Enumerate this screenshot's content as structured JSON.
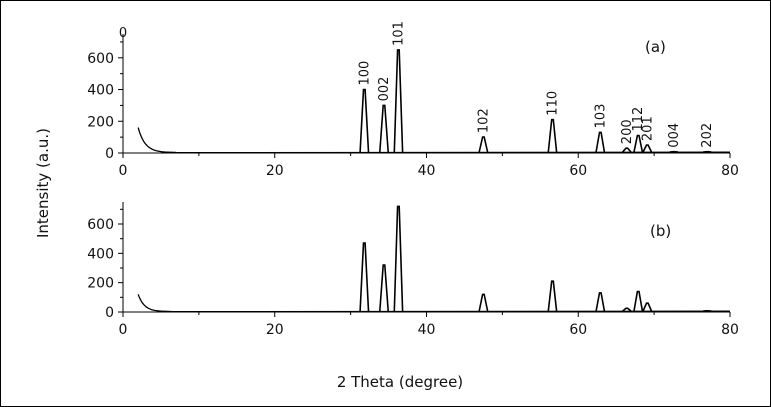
{
  "figure": {
    "ylabel": "Intensity (a.u.)",
    "xlabel": "2 Theta (degree)",
    "stray_tick_label": "0"
  },
  "chart_data": [
    {
      "type": "line",
      "panel_label": "(a)",
      "xlim": [
        0,
        80
      ],
      "ylim": [
        0,
        750
      ],
      "x_ticks": [
        0,
        20,
        40,
        60,
        80
      ],
      "y_ticks": [
        0,
        200,
        400,
        600
      ],
      "grid": false,
      "legend": "none",
      "background_hump": {
        "start": 2,
        "start_value": 160,
        "end": 7,
        "end_value": 3
      },
      "peaks": [
        {
          "x": 31.8,
          "y": 400,
          "label": "100"
        },
        {
          "x": 34.4,
          "y": 300,
          "label": "002"
        },
        {
          "x": 36.3,
          "y": 650,
          "label": "101"
        },
        {
          "x": 47.5,
          "y": 100,
          "label": "102"
        },
        {
          "x": 56.6,
          "y": 210,
          "label": "110"
        },
        {
          "x": 62.9,
          "y": 130,
          "label": "103"
        },
        {
          "x": 66.4,
          "y": 30,
          "label": "200"
        },
        {
          "x": 67.9,
          "y": 110,
          "label": "112"
        },
        {
          "x": 69.1,
          "y": 50,
          "label": "201"
        },
        {
          "x": 72.6,
          "y": 8,
          "label": "004"
        },
        {
          "x": 77.0,
          "y": 8,
          "label": "202"
        }
      ]
    },
    {
      "type": "line",
      "panel_label": "(b)",
      "xlim": [
        0,
        80
      ],
      "ylim": [
        0,
        750
      ],
      "x_ticks": [
        0,
        20,
        40,
        60,
        80
      ],
      "y_ticks": [
        0,
        200,
        400,
        600
      ],
      "grid": false,
      "legend": "none",
      "background_hump": {
        "start": 2,
        "start_value": 120,
        "end": 6.5,
        "end_value": 3
      },
      "peaks": [
        {
          "x": 31.8,
          "y": 470
        },
        {
          "x": 34.4,
          "y": 320
        },
        {
          "x": 36.3,
          "y": 720
        },
        {
          "x": 47.5,
          "y": 120
        },
        {
          "x": 56.6,
          "y": 210
        },
        {
          "x": 62.9,
          "y": 130
        },
        {
          "x": 66.4,
          "y": 25
        },
        {
          "x": 67.9,
          "y": 140
        },
        {
          "x": 69.1,
          "y": 60
        },
        {
          "x": 77.0,
          "y": 8
        }
      ]
    }
  ]
}
